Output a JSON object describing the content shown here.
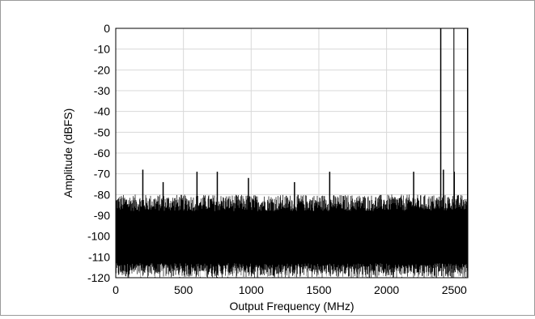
{
  "chart_data": {
    "type": "line",
    "title": "",
    "xlabel": "Output Frequency  (MHz)",
    "ylabel": "Amplitude  (dBFS)",
    "xlim": [
      0,
      2600
    ],
    "ylim": [
      -120,
      0
    ],
    "x_ticks": [
      0,
      500,
      1000,
      1500,
      2000,
      2500
    ],
    "y_ticks": [
      0,
      -10,
      -20,
      -30,
      -40,
      -50,
      -60,
      -70,
      -80,
      -90,
      -100,
      -110,
      -120
    ],
    "grid": true,
    "legend": "none",
    "noise_floor": {
      "top_range": [
        -88,
        -80
      ],
      "bottom_range": [
        -120,
        -113
      ],
      "x_range": [
        0,
        2600
      ]
    },
    "series": [
      {
        "color": "#000000",
        "x": [
          200,
          350,
          600,
          750,
          980,
          1320,
          1580,
          2200,
          2420,
          2500
        ],
        "values": [
          -68,
          -74,
          -69,
          -69,
          -72,
          -74,
          -69,
          -69,
          -68,
          -69
        ]
      },
      {
        "color": "#000000",
        "x": [
          2400
        ],
        "values": [
          0
        ]
      }
    ],
    "markers": [
      {
        "x": 2500
      },
      {
        "x": 2600
      }
    ]
  }
}
